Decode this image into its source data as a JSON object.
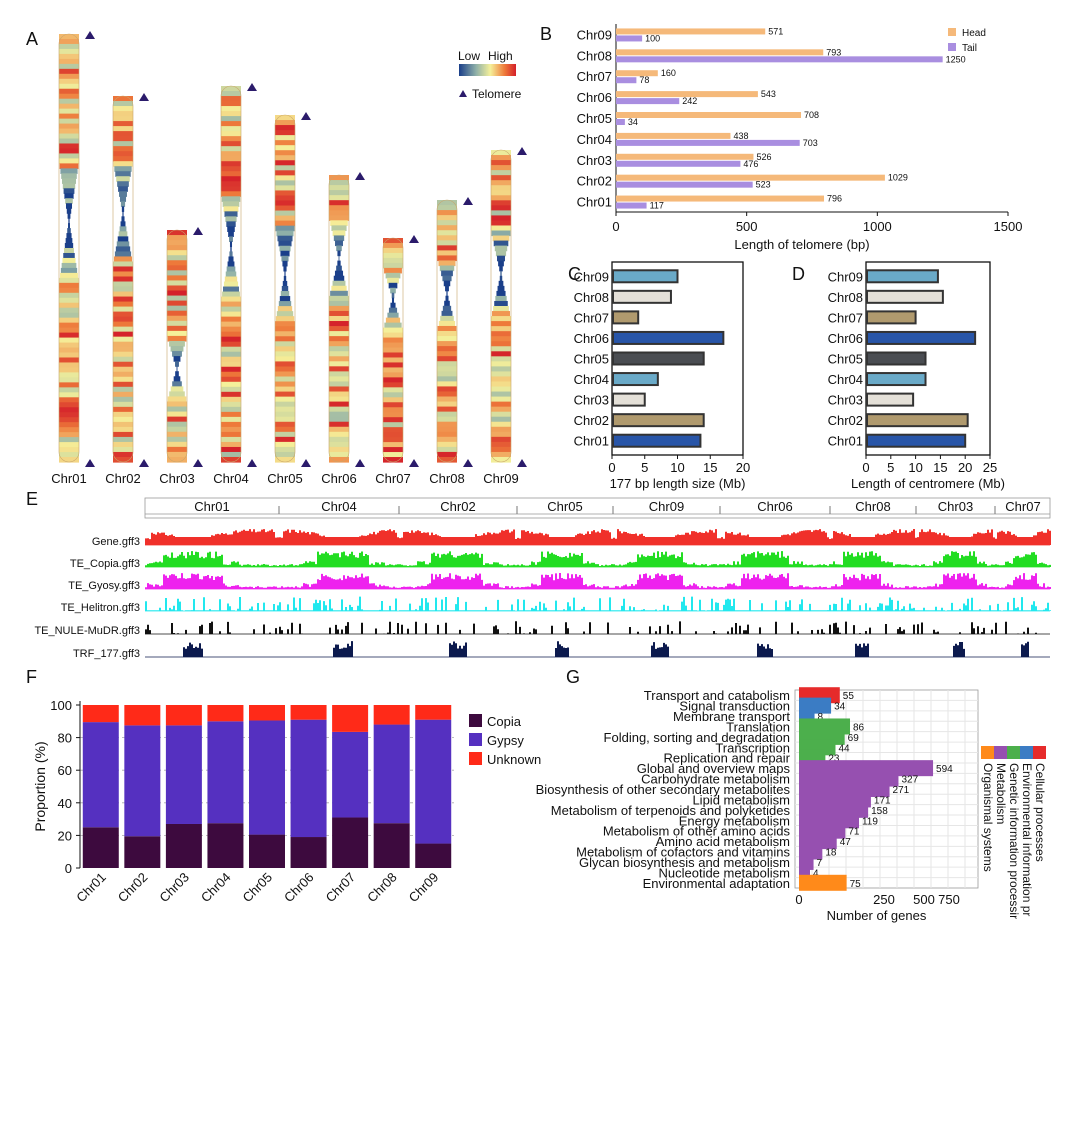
{
  "chart_data": [
    {
      "panel": "A",
      "type": "other",
      "legend": {
        "low": "Low",
        "high": "High",
        "telomere": "Telomere"
      },
      "colors": {
        "low": "#1a3f8a",
        "mid": "#f5f09a",
        "high": "#d4202a",
        "telomere_marker": "#2b1b6b"
      },
      "chromosomes": [
        "Chr01",
        "Chr02",
        "Chr03",
        "Chr04",
        "Chr05",
        "Chr06",
        "Chr07",
        "Chr08",
        "Chr09"
      ]
    },
    {
      "panel": "B",
      "type": "bar",
      "orientation": "horizontal",
      "categories": [
        "Chr09",
        "Chr08",
        "Chr07",
        "Chr06",
        "Chr05",
        "Chr04",
        "Chr03",
        "Chr02",
        "Chr01"
      ],
      "series": [
        {
          "name": "Head",
          "color": "#f5b97a",
          "values": [
            571,
            793,
            160,
            543,
            708,
            438,
            526,
            1029,
            796
          ]
        },
        {
          "name": "Tail",
          "color": "#a98ee0",
          "values": [
            100,
            1250,
            78,
            242,
            34,
            703,
            476,
            523,
            117
          ]
        }
      ],
      "xlabel": "Length of telomere (bp)",
      "xlim": [
        0,
        1500
      ],
      "xticks": [
        0,
        500,
        1000,
        1500
      ],
      "legend_position": "top-right"
    },
    {
      "panel": "C",
      "type": "bar",
      "orientation": "horizontal",
      "categories": [
        "Chr09",
        "Chr08",
        "Chr07",
        "Chr06",
        "Chr05",
        "Chr04",
        "Chr03",
        "Chr02",
        "Chr01"
      ],
      "values": [
        10,
        9,
        4,
        17,
        14,
        7,
        5,
        14,
        13.5
      ],
      "colors": [
        "#6aaac8",
        "#e4e0d8",
        "#b09a6e",
        "#2855a8",
        "#4a4d52",
        "#6aaac8",
        "#e4e0d8",
        "#b09a6e",
        "#2855a8"
      ],
      "xlabel": "177 bp length size (Mb)",
      "xlim": [
        0,
        20
      ],
      "xticks": [
        0,
        5,
        10,
        15,
        20
      ]
    },
    {
      "panel": "D",
      "type": "bar",
      "orientation": "horizontal",
      "categories": [
        "Chr09",
        "Chr08",
        "Chr07",
        "Chr06",
        "Chr05",
        "Chr04",
        "Chr03",
        "Chr02",
        "Chr01"
      ],
      "values": [
        14.5,
        15.5,
        10,
        22,
        12,
        12,
        9.5,
        20.5,
        20
      ],
      "colors": [
        "#6aaac8",
        "#e4e0d8",
        "#b09a6e",
        "#2855a8",
        "#4a4d52",
        "#6aaac8",
        "#e4e0d8",
        "#b09a6e",
        "#2855a8"
      ],
      "xlabel": "Length of centromere (Mb)",
      "xlim": [
        0,
        25
      ],
      "xticks": [
        0,
        5,
        10,
        15,
        20,
        25
      ]
    },
    {
      "panel": "E",
      "type": "area",
      "chromosome_order": [
        "Chr01",
        "Chr04",
        "Chr02",
        "Chr05",
        "Chr09",
        "Chr06",
        "Chr08",
        "Chr03",
        "Chr07"
      ],
      "tracks": [
        {
          "name": "Gene.gff3",
          "color": "#f0302a"
        },
        {
          "name": "TE_Copia.gff3",
          "color": "#22dd22"
        },
        {
          "name": "TE_Gyosy.gff3",
          "color": "#ee22ee"
        },
        {
          "name": "TE_Helitron.gff3",
          "color": "#22e8ee"
        },
        {
          "name": "TE_NULE-MuDR.gff3",
          "color": "#111111"
        },
        {
          "name": "TRF_177.gff3",
          "color": "#0c1a4e"
        }
      ]
    },
    {
      "panel": "F",
      "type": "bar",
      "stacked": true,
      "categories": [
        "Chr01",
        "Chr02",
        "Chr03",
        "Chr04",
        "Chr05",
        "Chr06",
        "Chr07",
        "Chr08",
        "Chr09"
      ],
      "series": [
        {
          "name": "Copia",
          "color": "#3d0a3e",
          "values": [
            25,
            19.5,
            27,
            27.5,
            20.5,
            19,
            31,
            27.5,
            15
          ]
        },
        {
          "name": "Gypsy",
          "color": "#5530c0",
          "values": [
            64.5,
            68,
            60.5,
            62.5,
            70,
            72,
            52.5,
            60.5,
            76
          ]
        },
        {
          "name": "Unknown",
          "color": "#ff2a18",
          "values": [
            10.5,
            12.5,
            12.5,
            10,
            9.5,
            9,
            16.5,
            12,
            9
          ]
        }
      ],
      "ylabel": "Proportion (%)",
      "ylim": [
        0,
        100
      ],
      "yticks": [
        0,
        20,
        40,
        60,
        80,
        100
      ],
      "legend_position": "right"
    },
    {
      "panel": "G",
      "type": "bar",
      "orientation": "horizontal",
      "categories": [
        "Transport and catabolism",
        "Signal transduction",
        "Membrane transport",
        "Translation",
        "Folding, sorting and degradation",
        "Transcription",
        "Replication and repair",
        "Global and overview maps",
        "Carbohydrate metabolism",
        "Biosynthesis of other secondary metabolites",
        "Lipid metabolism",
        "Metabolism of terpenoids and polyketides",
        "Energy metabolism",
        "Metabolism of other amino acids",
        "Amino acid metabolism",
        "Metabolism of cofactors and vitamins",
        "Glycan biosynthesis and metabolism",
        "Nucleotide metabolism",
        "Environmental adaptation"
      ],
      "values": [
        55,
        34,
        8,
        86,
        69,
        44,
        23,
        594,
        327,
        271,
        171,
        158,
        119,
        71,
        47,
        18,
        7,
        4,
        75
      ],
      "groups": [
        "Cellular processes",
        "Environmental information pr",
        "Environmental information pr",
        "Genetic information processir",
        "Genetic information processir",
        "Genetic information processir",
        "Genetic information processir",
        "Metabolism",
        "Metabolism",
        "Metabolism",
        "Metabolism",
        "Metabolism",
        "Metabolism",
        "Metabolism",
        "Metabolism",
        "Metabolism",
        "Metabolism",
        "Metabolism",
        "Organismal systems"
      ],
      "group_colors": {
        "Cellular processes": "#e62b2b",
        "Environmental information pr": "#3b7cc4",
        "Genetic information processir": "#4caf4c",
        "Metabolism": "#9650b0",
        "Organismal systems": "#ff8a1a"
      },
      "xlabel": "Number of genes",
      "xticks": [
        "0",
        "250",
        "500",
        "750"
      ],
      "legend_position": "right"
    }
  ],
  "panel_labels": [
    "A",
    "B",
    "C",
    "D",
    "E",
    "F",
    "G"
  ]
}
